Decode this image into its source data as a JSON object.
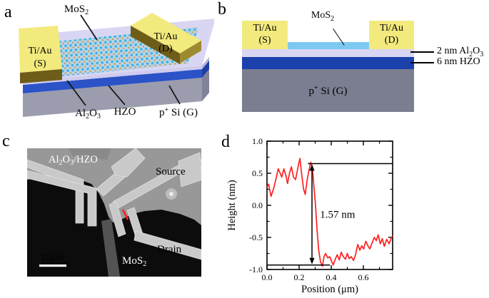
{
  "figure": {
    "panel_a": {
      "label": "a",
      "mos2": {
        "base": "MoS",
        "sub": "2"
      },
      "contact_s": {
        "line1": "Ti/Au",
        "line2": "(S)"
      },
      "contact_d": {
        "line1": "Ti/Au",
        "line2": "(D)"
      },
      "al2o3": {
        "p1": "Al",
        "s1": "2",
        "p2": "O",
        "s2": "3"
      },
      "hzo": "HZO",
      "substrate": {
        "p1": "p",
        "sup": "+",
        "p2": " Si (G)"
      }
    },
    "panel_b": {
      "label": "b",
      "contact_s": {
        "line1": "Ti/Au",
        "line2": "(S)"
      },
      "contact_d": {
        "line1": "Ti/Au",
        "line2": "(D)"
      },
      "mos2": {
        "base": "MoS",
        "sub": "2"
      },
      "al2o3_note": {
        "p1": "2 nm Al",
        "s1": "2",
        "p2": "O",
        "s2": "3"
      },
      "hzo_note": "6 nm HZO",
      "substrate": {
        "p1": "p",
        "sup": "+",
        "p2": " Si (G)"
      }
    },
    "panel_c": {
      "label": "c",
      "film": {
        "p1": "Al",
        "s1": "2",
        "p2": "O",
        "s2": "3",
        "p3": "/HZO"
      },
      "source": "Source",
      "drain": "Drain",
      "mos2": {
        "base": "MoS",
        "sub": "2"
      },
      "scalebar": "10μm"
    },
    "panel_d": {
      "label": "d"
    }
  },
  "colors": {
    "gold_top": "#f3ea7e",
    "gold_front": "#6e5d18",
    "gold_side": "#9d8a2e",
    "mos2_blue": "#7ec9f1",
    "al2o3_lavender": "#d9d6f3",
    "al2o3_front": "#cfcbee",
    "al2o3_side": "#b6b1da",
    "hzo_blue": "#1b41ad",
    "hzo_front": "#2b53c7",
    "hzo_side": "#1d3ea4",
    "substrate_gray": "#7b7e90",
    "substrate_front": "#9b9dae",
    "substrate_side": "#81839a",
    "profile_red": "#ff2020",
    "sem_background": "#989898",
    "sem_electrode": "#c9c9c9",
    "sem_flake": "#0c0c0c"
  },
  "chart_data": {
    "type": "line",
    "title": "",
    "xlabel": "Position (μm)",
    "ylabel": "Height (nm)",
    "xlim": [
      0,
      0.782
    ],
    "ylim": [
      -1.0,
      1.0
    ],
    "grid": false,
    "legend": "none",
    "x_ticks": {
      "values": [
        0,
        0.2,
        0.4,
        0.6
      ],
      "labels": [
        "0.0",
        "0.2",
        "0.4",
        "0.6"
      ],
      "minor": [
        0.1,
        0.3,
        0.5,
        0.7
      ]
    },
    "y_ticks": {
      "values": [
        1.0,
        0.5,
        0.0,
        -0.5,
        -1.0
      ],
      "labels": [
        "1.0",
        "0.5",
        "0.0",
        "-0.5",
        "-1.0"
      ],
      "minor": [
        0.75,
        0.25,
        -0.25,
        -0.75
      ]
    },
    "series": [
      {
        "name": "AFM height profile",
        "color": "#ff2020",
        "x": [
          0.0,
          0.01,
          0.025,
          0.04,
          0.055,
          0.07,
          0.082,
          0.092,
          0.105,
          0.118,
          0.128,
          0.14,
          0.152,
          0.165,
          0.178,
          0.195,
          0.205,
          0.215,
          0.228,
          0.238,
          0.25,
          0.262,
          0.272,
          0.282,
          0.292,
          0.302,
          0.312,
          0.322,
          0.333,
          0.345,
          0.355,
          0.365,
          0.378,
          0.39,
          0.4,
          0.412,
          0.425,
          0.437,
          0.45,
          0.462,
          0.475,
          0.488,
          0.5,
          0.512,
          0.525,
          0.538,
          0.55,
          0.565,
          0.578,
          0.59,
          0.602,
          0.615,
          0.628,
          0.64,
          0.655,
          0.668,
          0.68,
          0.692,
          0.705,
          0.718,
          0.73,
          0.745,
          0.76,
          0.775,
          0.782
        ],
        "y": [
          0.28,
          0.33,
          0.14,
          0.25,
          0.4,
          0.57,
          0.5,
          0.44,
          0.57,
          0.46,
          0.34,
          0.5,
          0.6,
          0.44,
          0.4,
          0.62,
          0.73,
          0.5,
          0.25,
          0.17,
          0.4,
          0.55,
          0.67,
          0.6,
          0.3,
          0.0,
          -0.4,
          -0.7,
          -0.88,
          -0.95,
          -0.8,
          -0.75,
          -0.82,
          -0.8,
          -0.86,
          -0.93,
          -0.84,
          -0.77,
          -0.85,
          -0.73,
          -0.8,
          -0.84,
          -0.75,
          -0.83,
          -0.8,
          -0.86,
          -0.78,
          -0.61,
          -0.7,
          -0.63,
          -0.68,
          -0.56,
          -0.63,
          -0.68,
          -0.58,
          -0.5,
          -0.55,
          -0.46,
          -0.6,
          -0.52,
          -0.64,
          -0.53,
          -0.6,
          -0.5,
          -0.48
        ]
      }
    ],
    "annotation": {
      "label": "1.57 nm",
      "step_height_nm": 1.57,
      "top_line": {
        "y": 0.65,
        "x0": 0.255,
        "x1": 0.782
      },
      "bottom_line": {
        "y": -0.93,
        "x0": 0.0,
        "x1": 0.392
      },
      "arrow_x": 0.28,
      "label_x": 0.33,
      "label_y": -0.14
    }
  }
}
